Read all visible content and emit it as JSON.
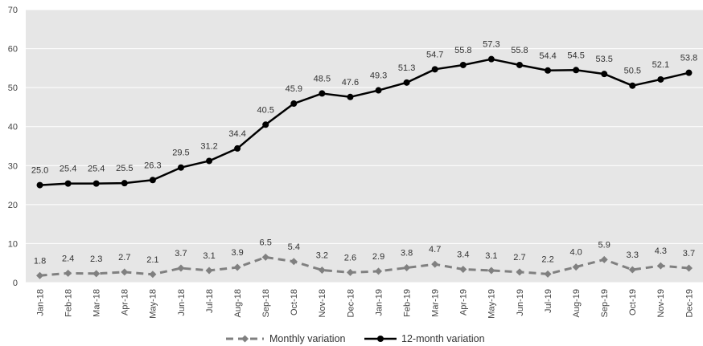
{
  "chart_data": {
    "type": "line",
    "title": "",
    "xlabel": "",
    "ylabel": "",
    "ylim": [
      0,
      70
    ],
    "yticks": [
      "0",
      "10",
      "20",
      "30",
      "40",
      "50",
      "60",
      "70"
    ],
    "grid": "horizontal",
    "legend_position": "bottom",
    "categories": [
      "Jan-18",
      "Feb-18",
      "Mar-18",
      "Apr-18",
      "May-18",
      "Jun-18",
      "Jul-18",
      "Aug-18",
      "Sep-18",
      "Oct-18",
      "Nov-18",
      "Dec-18",
      "Jan-19",
      "Feb-19",
      "Mar-19",
      "Apr-19",
      "May-19",
      "Jun-19",
      "Jul-19",
      "Aug-19",
      "Sep-19",
      "Oct-19",
      "Nov-19",
      "Dec-19"
    ],
    "series": [
      {
        "name": "Monthly variation",
        "color": "#808080",
        "style": "dashed",
        "marker": "diamond",
        "values": [
          1.8,
          2.4,
          2.3,
          2.7,
          2.1,
          3.7,
          3.1,
          3.9,
          6.5,
          5.4,
          3.2,
          2.6,
          2.9,
          3.8,
          4.7,
          3.4,
          3.1,
          2.7,
          2.2,
          4.0,
          5.9,
          3.3,
          4.3,
          3.7
        ],
        "labels": [
          "1.8",
          "2.4",
          "2.3",
          "2.7",
          "2.1",
          "3.7",
          "3.1",
          "3.9",
          "6.5",
          "5.4",
          "3.2",
          "2.6",
          "2.9",
          "3.8",
          "4.7",
          "3.4",
          "3.1",
          "2.7",
          "2.2",
          "4.0",
          "5.9",
          "3.3",
          "4.3",
          "3.7"
        ]
      },
      {
        "name": "12-month variation",
        "color": "#000000",
        "style": "solid",
        "marker": "circle",
        "values": [
          25.0,
          25.4,
          25.4,
          25.5,
          26.3,
          29.5,
          31.2,
          34.4,
          40.5,
          45.9,
          48.5,
          47.6,
          49.3,
          51.3,
          54.7,
          55.8,
          57.3,
          55.8,
          54.4,
          54.5,
          53.5,
          50.5,
          52.1,
          53.8
        ],
        "labels": [
          "25.0",
          "25.4",
          "25.4",
          "25.5",
          "26.3",
          "29.5",
          "31.2",
          "34.4",
          "40.5",
          "45.9",
          "48.5",
          "47.6",
          "49.3",
          "51.3",
          "54.7",
          "55.8",
          "57.3",
          "55.8",
          "54.4",
          "54.5",
          "53.5",
          "50.5",
          "52.1",
          "53.8"
        ]
      }
    ]
  }
}
